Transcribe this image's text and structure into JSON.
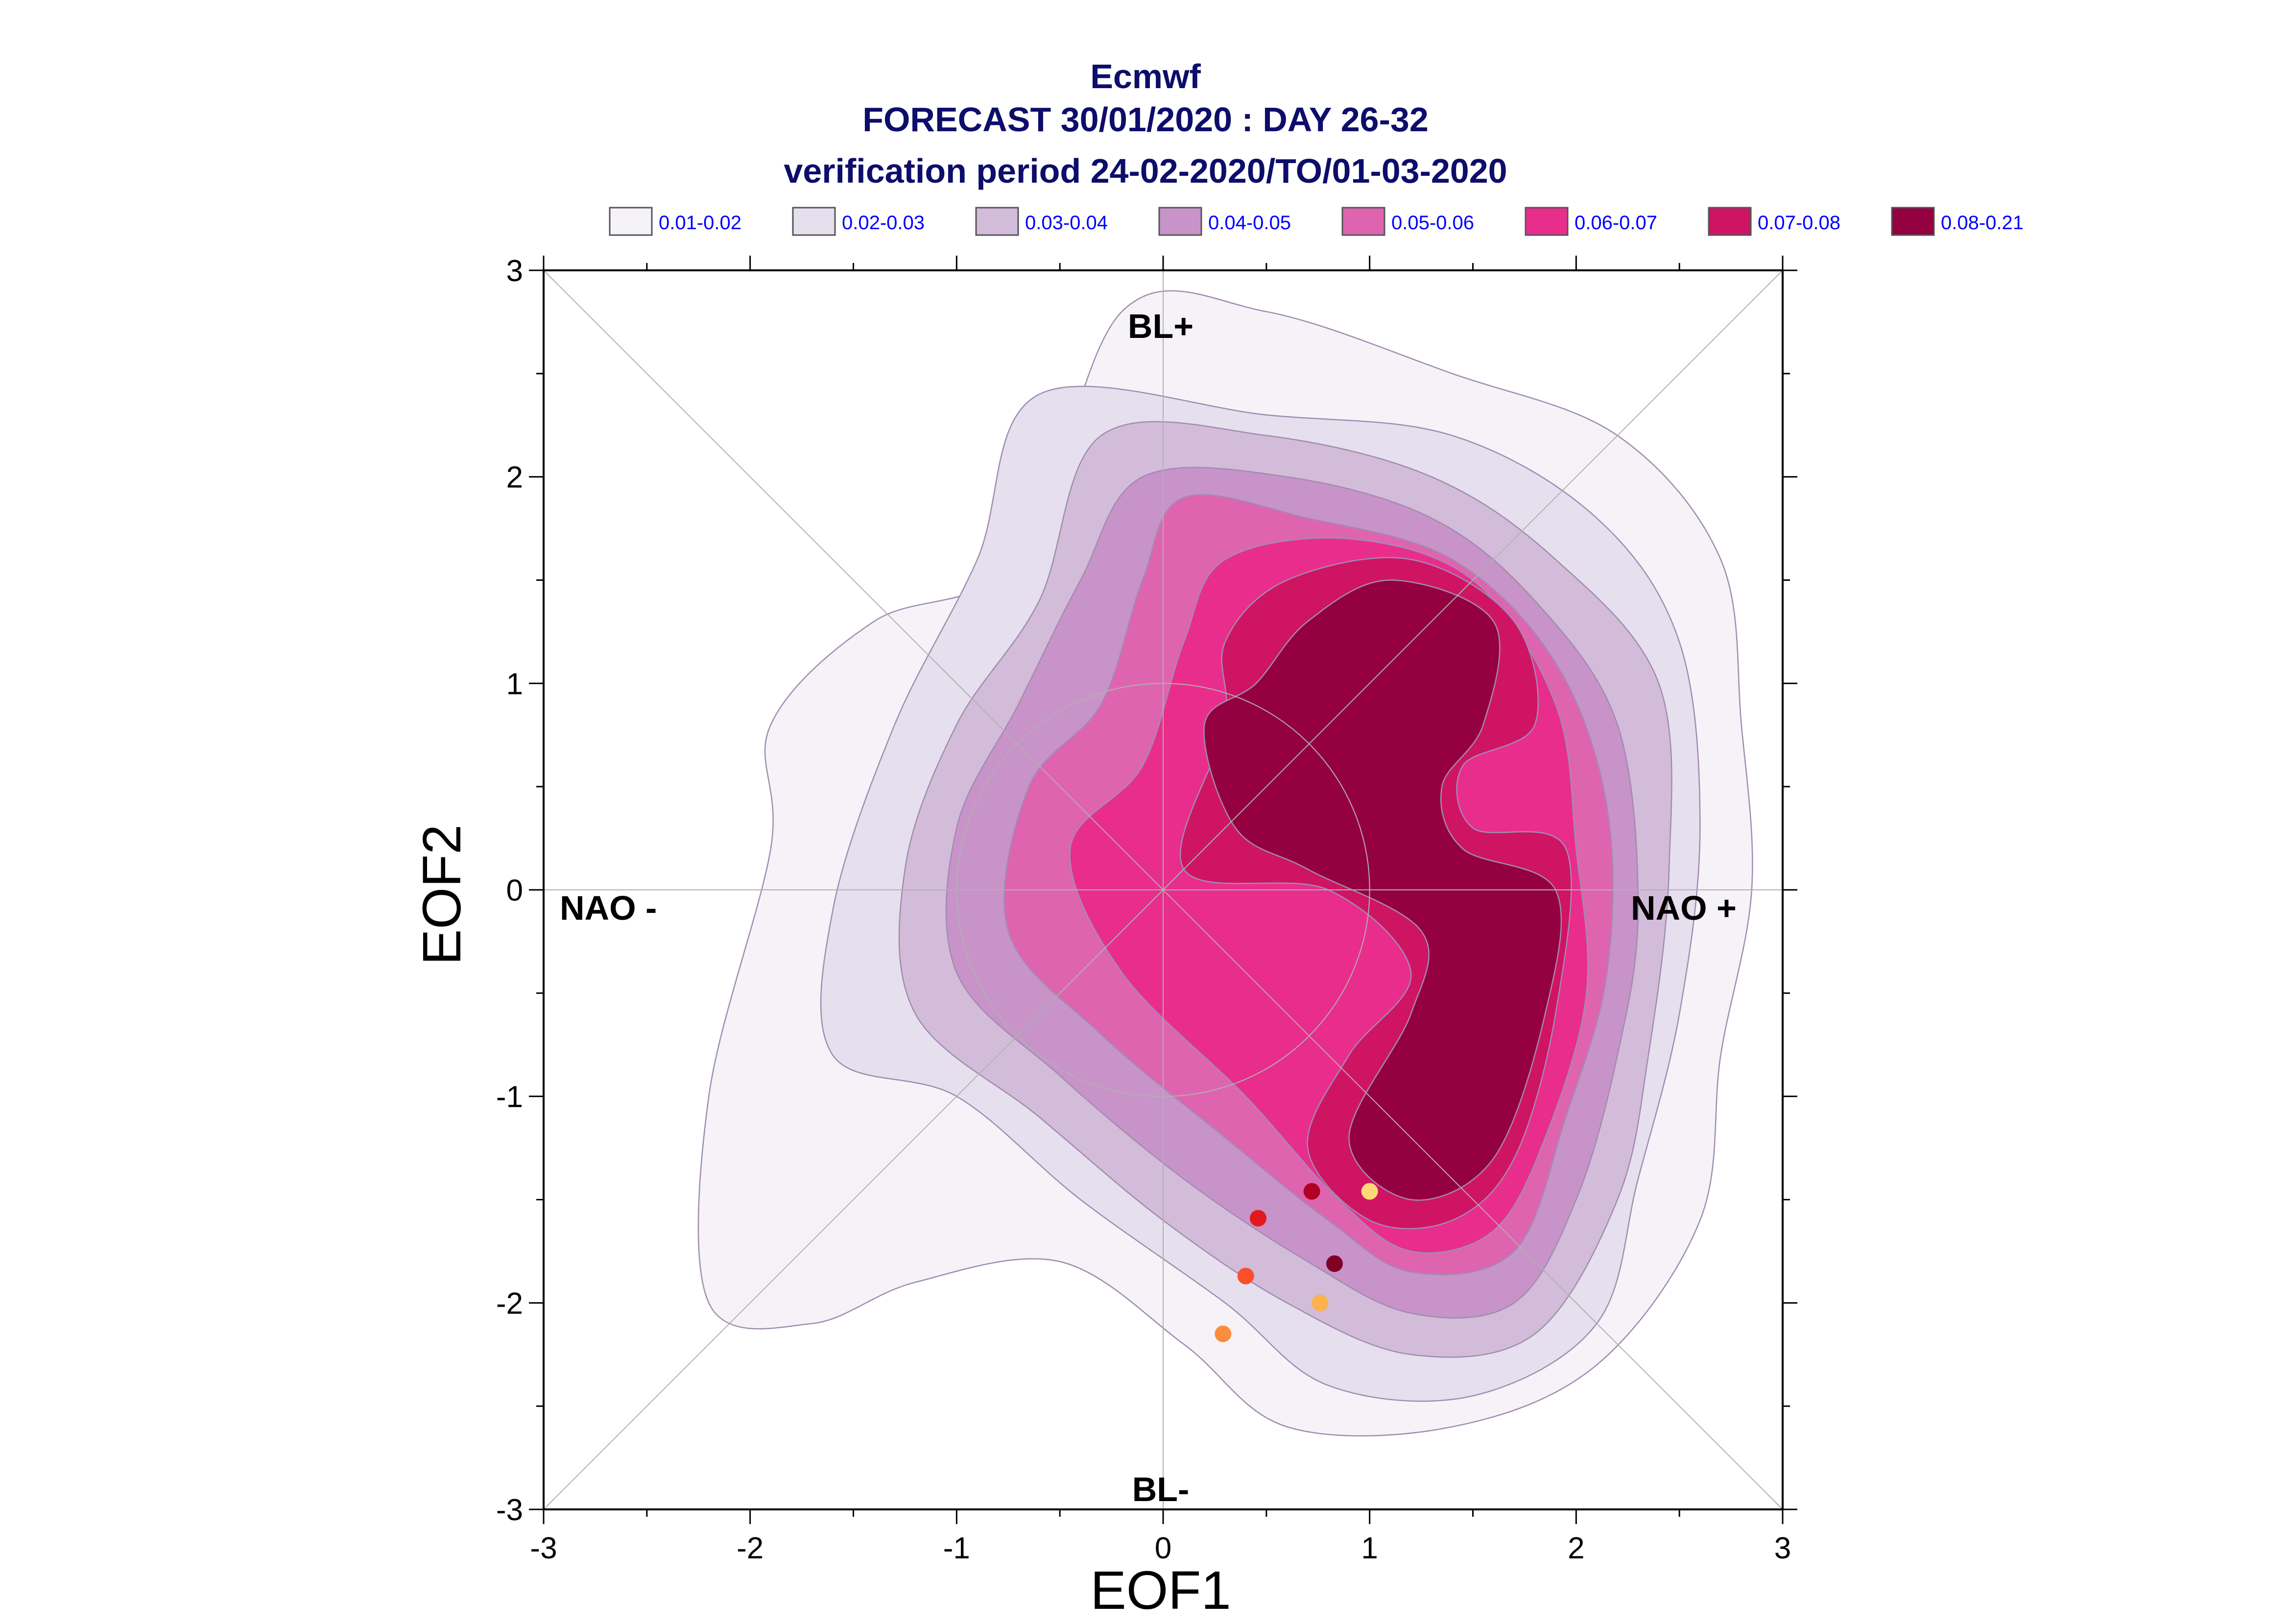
{
  "title": {
    "line1": "Ecmwf",
    "line2": "FORECAST 30/01/2020 : DAY 26-32",
    "line3": "verification period 24-02-2020/TO/01-03-2020"
  },
  "legend": [
    {
      "label": "0.01-0.02",
      "color": "#f6f3f8"
    },
    {
      "label": "0.02-0.03",
      "color": "#e6dfee"
    },
    {
      "label": "0.03-0.04",
      "color": "#d3bcd9"
    },
    {
      "label": "0.04-0.05",
      "color": "#c893c9"
    },
    {
      "label": "0.05-0.06",
      "color": "#df64b0"
    },
    {
      "label": "0.06-0.07",
      "color": "#e92d8c"
    },
    {
      "label": "0.07-0.08",
      "color": "#cf1463"
    },
    {
      "label": "0.08-0.21",
      "color": "#940040"
    }
  ],
  "legend_text_color": "#0000ff",
  "title_color": "#0d0d6b",
  "regime_labels": {
    "top": "BL+",
    "bottom": "BL-",
    "left": "NAO -",
    "right": "NAO +"
  },
  "chart_data": {
    "type": "scatter",
    "xlabel": "EOF1",
    "ylabel": "EOF2",
    "xlim": [
      -3,
      3
    ],
    "ylim": [
      -3,
      3
    ],
    "x_ticks": [
      -3,
      -2,
      -1,
      0,
      1,
      2,
      3
    ],
    "y_ticks": [
      -3,
      -2,
      -1,
      0,
      1,
      2,
      3
    ],
    "unit_circle_radius": 1,
    "density_levels": [
      "0.01-0.02",
      "0.02-0.03",
      "0.03-0.04",
      "0.04-0.05",
      "0.05-0.06",
      "0.06-0.07",
      "0.07-0.08",
      "0.08-0.21"
    ],
    "density_contours": [
      [
        [
          -0.2,
          2.8
        ],
        [
          0.5,
          2.8
        ],
        [
          1.4,
          2.5
        ],
        [
          2.2,
          2.2
        ],
        [
          2.7,
          1.6
        ],
        [
          2.8,
          0.8
        ],
        [
          2.85,
          0.0
        ],
        [
          2.7,
          -0.8
        ],
        [
          2.6,
          -1.6
        ],
        [
          2.1,
          -2.3
        ],
        [
          1.4,
          -2.6
        ],
        [
          0.6,
          -2.6
        ],
        [
          0.1,
          -2.2
        ],
        [
          -0.5,
          -1.8
        ],
        [
          -1.2,
          -1.9
        ],
        [
          -1.7,
          -2.1
        ],
        [
          -2.2,
          -2.0
        ],
        [
          -2.2,
          -1.0
        ],
        [
          -1.9,
          0.2
        ],
        [
          -1.9,
          0.8
        ],
        [
          -1.4,
          1.3
        ],
        [
          -0.7,
          1.6
        ]
      ],
      [
        [
          -0.6,
          2.4
        ],
        [
          0.5,
          2.3
        ],
        [
          1.4,
          2.2
        ],
        [
          2.1,
          1.8
        ],
        [
          2.5,
          1.2
        ],
        [
          2.6,
          0.3
        ],
        [
          2.5,
          -0.6
        ],
        [
          2.3,
          -1.4
        ],
        [
          2.1,
          -2.1
        ],
        [
          1.5,
          -2.45
        ],
        [
          0.8,
          -2.4
        ],
        [
          0.3,
          -2.0
        ],
        [
          -0.4,
          -1.5
        ],
        [
          -1.0,
          -1.0
        ],
        [
          -1.6,
          -0.8
        ],
        [
          -1.6,
          -0.1
        ],
        [
          -1.3,
          0.8
        ],
        [
          -0.9,
          1.6
        ]
      ],
      [
        [
          -0.3,
          2.2
        ],
        [
          0.5,
          2.2
        ],
        [
          1.3,
          2.0
        ],
        [
          1.9,
          1.6
        ],
        [
          2.4,
          1.0
        ],
        [
          2.45,
          0.1
        ],
        [
          2.35,
          -0.8
        ],
        [
          2.2,
          -1.5
        ],
        [
          1.8,
          -2.15
        ],
        [
          1.2,
          -2.25
        ],
        [
          0.6,
          -2.0
        ],
        [
          0.0,
          -1.6
        ],
        [
          -0.6,
          -1.1
        ],
        [
          -1.2,
          -0.6
        ],
        [
          -1.25,
          0.1
        ],
        [
          -1.0,
          0.8
        ],
        [
          -0.6,
          1.4
        ]
      ],
      [
        [
          -0.1,
          2.0
        ],
        [
          0.6,
          2.0
        ],
        [
          1.3,
          1.8
        ],
        [
          1.8,
          1.4
        ],
        [
          2.2,
          0.8
        ],
        [
          2.3,
          -0.1
        ],
        [
          2.2,
          -0.8
        ],
        [
          2.0,
          -1.5
        ],
        [
          1.7,
          -2.0
        ],
        [
          1.2,
          -2.05
        ],
        [
          0.7,
          -1.8
        ],
        [
          0.1,
          -1.4
        ],
        [
          -0.5,
          -0.9
        ],
        [
          -1.0,
          -0.4
        ],
        [
          -1.0,
          0.3
        ],
        [
          -0.7,
          0.9
        ],
        [
          -0.4,
          1.5
        ]
      ],
      [
        [
          0.1,
          1.9
        ],
        [
          0.7,
          1.8
        ],
        [
          1.4,
          1.6
        ],
        [
          1.9,
          1.1
        ],
        [
          2.15,
          0.4
        ],
        [
          2.15,
          -0.4
        ],
        [
          1.95,
          -1.1
        ],
        [
          1.7,
          -1.75
        ],
        [
          1.2,
          -1.85
        ],
        [
          0.8,
          -1.6
        ],
        [
          0.3,
          -1.2
        ],
        [
          -0.3,
          -0.7
        ],
        [
          -0.75,
          -0.2
        ],
        [
          -0.65,
          0.5
        ],
        [
          -0.3,
          0.9
        ],
        [
          -0.1,
          1.5
        ]
      ],
      [
        [
          0.3,
          1.6
        ],
        [
          0.9,
          1.7
        ],
        [
          1.5,
          1.5
        ],
        [
          1.9,
          0.9
        ],
        [
          2.0,
          0.2
        ],
        [
          2.05,
          -0.5
        ],
        [
          1.85,
          -1.2
        ],
        [
          1.6,
          -1.65
        ],
        [
          1.2,
          -1.75
        ],
        [
          0.85,
          -1.5
        ],
        [
          0.4,
          -1.0
        ],
        [
          -0.2,
          -0.4
        ],
        [
          -0.45,
          0.2
        ],
        [
          -0.1,
          0.6
        ],
        [
          0.1,
          1.2
        ]
      ],
      [
        [
          0.6,
          1.5
        ],
        [
          1.2,
          1.6
        ],
        [
          1.7,
          1.3
        ],
        [
          1.8,
          0.8
        ],
        [
          1.45,
          0.6
        ],
        [
          1.5,
          0.3
        ],
        [
          1.95,
          0.2
        ],
        [
          1.9,
          -0.6
        ],
        [
          1.7,
          -1.3
        ],
        [
          1.4,
          -1.6
        ],
        [
          1.0,
          -1.6
        ],
        [
          0.7,
          -1.25
        ],
        [
          0.9,
          -0.8
        ],
        [
          1.2,
          -0.4
        ],
        [
          0.8,
          0.0
        ],
        [
          0.1,
          0.1
        ],
        [
          0.3,
          0.8
        ],
        [
          0.3,
          1.2
        ]
      ],
      [
        [
          0.7,
          1.3
        ],
        [
          1.1,
          1.5
        ],
        [
          1.6,
          1.3
        ],
        [
          1.55,
          0.8
        ],
        [
          1.35,
          0.5
        ],
        [
          1.45,
          0.2
        ],
        [
          1.9,
          0.0
        ],
        [
          1.85,
          -0.6
        ],
        [
          1.6,
          -1.3
        ],
        [
          1.2,
          -1.5
        ],
        [
          0.9,
          -1.2
        ],
        [
          1.2,
          -0.6
        ],
        [
          1.25,
          -0.2
        ],
        [
          0.7,
          0.1
        ],
        [
          0.35,
          0.3
        ],
        [
          0.2,
          0.8
        ],
        [
          0.45,
          1.0
        ]
      ]
    ],
    "points": [
      {
        "x": 1.0,
        "y": -1.46,
        "color": "#fed976"
      },
      {
        "x": 0.72,
        "y": -1.46,
        "color": "#b10026"
      },
      {
        "x": 0.46,
        "y": -1.59,
        "color": "#e31a1c"
      },
      {
        "x": 0.83,
        "y": -1.81,
        "color": "#800026"
      },
      {
        "x": 0.4,
        "y": -1.87,
        "color": "#fc4e2a"
      },
      {
        "x": 0.76,
        "y": -2.0,
        "color": "#feb24c"
      },
      {
        "x": 0.29,
        "y": -2.15,
        "color": "#fd8d3c"
      }
    ]
  }
}
